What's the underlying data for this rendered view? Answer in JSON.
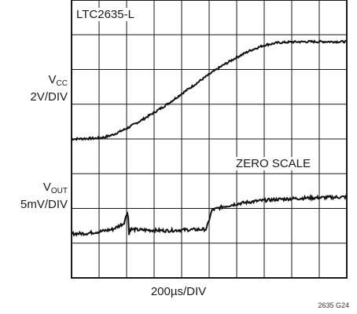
{
  "chart_data": {
    "type": "line",
    "title": "LTC2635-L",
    "xlabel": "200µs/DIV",
    "annotations": [
      "ZERO SCALE"
    ],
    "figure_id": "2635 G24",
    "grid": true,
    "x_divisions": 10,
    "y_divisions": 8,
    "series": [
      {
        "name": "VCC",
        "scale": "2V/DIV",
        "x": [
          0,
          0.5,
          0.9,
          1.2,
          1.5,
          2,
          2.5,
          3,
          3.5,
          4,
          4.5,
          5,
          5.5,
          6,
          6.5,
          7,
          7.5,
          8,
          8.5,
          9,
          9.5,
          10
        ],
        "y": [
          0.0,
          0.01,
          0.02,
          0.05,
          0.12,
          0.3,
          0.52,
          0.76,
          1.01,
          1.3,
          1.58,
          1.86,
          2.12,
          2.35,
          2.55,
          2.7,
          2.77,
          2.79,
          2.8,
          2.8,
          2.8,
          2.8
        ]
      },
      {
        "name": "VOUT",
        "scale": "5mV/DIV",
        "x": [
          0,
          0.5,
          1,
          1.5,
          1.9,
          2.05,
          2.08,
          2.12,
          2.2,
          2.5,
          3,
          3.5,
          4,
          4.5,
          4.9,
          5.1,
          5.5,
          6,
          6.5,
          7,
          7.5,
          8,
          8.5,
          9,
          9.5,
          10
        ],
        "y": [
          -0.68,
          -0.67,
          -0.62,
          -0.55,
          -0.38,
          0.0,
          -0.75,
          -0.55,
          -0.55,
          -0.57,
          -0.58,
          -0.59,
          -0.57,
          -0.56,
          -0.55,
          0.0,
          0.1,
          0.18,
          0.24,
          0.28,
          0.31,
          0.33,
          0.35,
          0.36,
          0.37,
          0.38
        ]
      }
    ]
  },
  "labels": {
    "part": "LTC2635-L",
    "vcc_main": "V",
    "vcc_sub": "CC",
    "vcc_scale": "2V/DIV",
    "vout_main": "V",
    "vout_sub": "OUT",
    "vout_scale": "5mV/DIV",
    "zero_scale": "ZERO SCALE",
    "x_scale": "200µs/DIV",
    "figure_id": "2635 G24"
  },
  "colors": {
    "grid": "#1a1a1a",
    "trace": "#111111",
    "background": "#ffffff"
  }
}
